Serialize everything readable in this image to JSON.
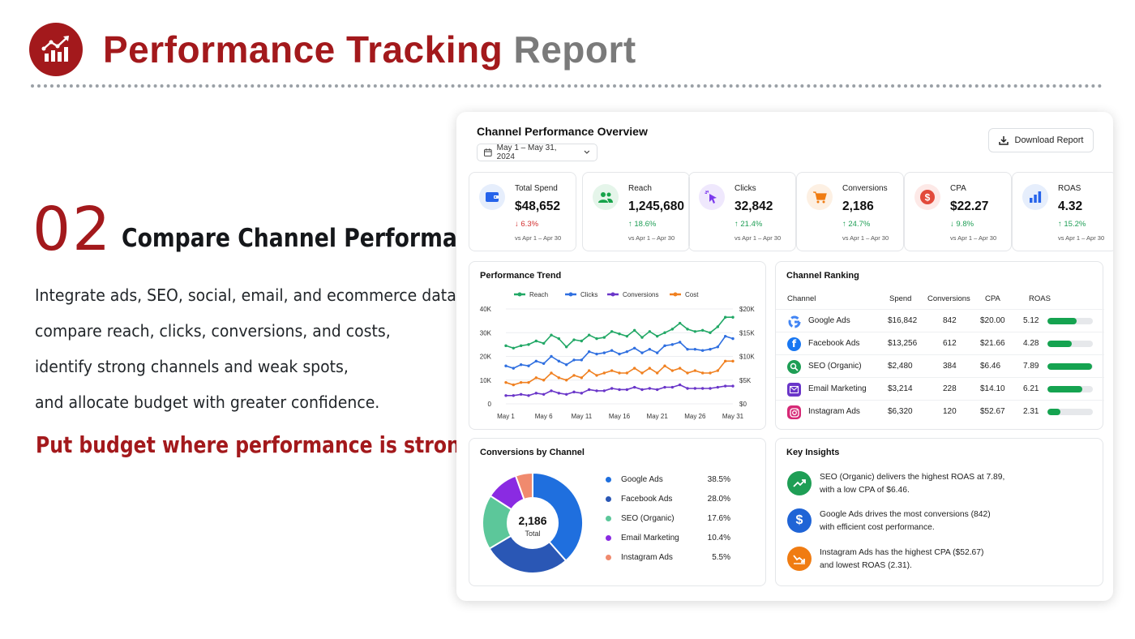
{
  "header": {
    "title_part1": "Performance Tracking",
    "title_part2": "Report",
    "logo_icon": "chart-growth-icon"
  },
  "section": {
    "number": "02",
    "title": "Compare Channel Performance",
    "description_lines": [
      "Integrate ads, SEO, social, email, and ecommerce data,",
      "compare reach, clicks, conversions, and costs,",
      "identify strong channels and weak spots,",
      "and allocate budget with greater confidence."
    ],
    "tagline": "Put budget where performance is strongest."
  },
  "dashboard": {
    "title": "Channel Performance Overview",
    "date_range": "May 1 – May 31, 2024",
    "download_label": "Download Report",
    "kpis": [
      {
        "label": "Total Spend",
        "value": "$48,652",
        "change": "6.3%",
        "direction": "down",
        "compare": "vs Apr 1 – Apr 30",
        "icon": "wallet-icon",
        "color": "#2563eb",
        "bg": "#e6eefc"
      },
      {
        "label": "Reach",
        "value": "1,245,680",
        "change": "18.6%",
        "direction": "up",
        "compare": "vs Apr 1 – Apr 30",
        "icon": "users-icon",
        "color": "#16a34a",
        "bg": "#e5f5ea"
      },
      {
        "label": "Clicks",
        "value": "32,842",
        "change": "21.4%",
        "direction": "up",
        "compare": "vs Apr 1 – Apr 30",
        "icon": "cursor-click-icon",
        "color": "#7c3aed",
        "bg": "#efe8fd"
      },
      {
        "label": "Conversions",
        "value": "2,186",
        "change": "24.7%",
        "direction": "up",
        "compare": "vs Apr 1 – Apr 30",
        "icon": "cart-icon",
        "color": "#f07c12",
        "bg": "#fdf0e3"
      },
      {
        "label": "CPA",
        "value": "$22.27",
        "change": "9.8%",
        "direction": "down_good",
        "compare": "vs Apr 1 – Apr 30",
        "icon": "dollar-coin-icon",
        "color": "#e24a3b",
        "bg": "#fde9e7"
      },
      {
        "label": "ROAS",
        "value": "4.32",
        "change": "15.2%",
        "direction": "up",
        "compare": "vs Apr 1 – Apr 30",
        "icon": "bar-chart-icon",
        "color": "#2563eb",
        "bg": "#e6eefc"
      }
    ],
    "trend": {
      "title": "Performance Trend",
      "legend": [
        "Reach",
        "Clicks",
        "Conversions",
        "Cost"
      ],
      "colors": [
        "#22a866",
        "#2f6fe0",
        "#6a36c9",
        "#f08020"
      ]
    },
    "ranking": {
      "title": "Channel Ranking",
      "headers": [
        "Channel",
        "Spend",
        "Conversions",
        "CPA",
        "ROAS"
      ],
      "rows": [
        {
          "channel": "Google Ads",
          "spend": "$16,842",
          "conversions": "842",
          "cpa": "$20.00",
          "roas": "5.12",
          "roas_value": 5.12,
          "icon": "google-icon"
        },
        {
          "channel": "Facebook Ads",
          "spend": "$13,256",
          "conversions": "612",
          "cpa": "$21.66",
          "roas": "4.28",
          "roas_value": 4.28,
          "icon": "facebook-icon"
        },
        {
          "channel": "SEO (Organic)",
          "spend": "$2,480",
          "conversions": "384",
          "cpa": "$6.46",
          "roas": "7.89",
          "roas_value": 7.89,
          "icon": "search-icon"
        },
        {
          "channel": "Email Marketing",
          "spend": "$3,214",
          "conversions": "228",
          "cpa": "$14.10",
          "roas": "6.21",
          "roas_value": 6.21,
          "icon": "email-icon"
        },
        {
          "channel": "Instagram Ads",
          "spend": "$6,320",
          "conversions": "120",
          "cpa": "$52.67",
          "roas": "2.31",
          "roas_value": 2.31,
          "icon": "instagram-icon"
        }
      ]
    },
    "conversions_by_channel": {
      "title": "Conversions by Channel",
      "total_value": "2,186",
      "total_label": "Total",
      "items": [
        {
          "name": "Google Ads",
          "pct_label": "38.5%",
          "pct": 38.5,
          "color": "#1f6fde"
        },
        {
          "name": "Facebook Ads",
          "pct_label": "28.0%",
          "pct": 28.0,
          "color": "#2a57b5"
        },
        {
          "name": "SEO (Organic)",
          "pct_label": "17.6%",
          "pct": 17.6,
          "color": "#5cc79a"
        },
        {
          "name": "Email Marketing",
          "pct_label": "10.4%",
          "pct": 10.4,
          "color": "#8a2be2"
        },
        {
          "name": "Instagram Ads",
          "pct_label": "5.5%",
          "pct": 5.5,
          "color": "#f08a6e"
        }
      ]
    },
    "insights": {
      "title": "Key Insights",
      "items": [
        {
          "line1": "SEO (Organic) delivers the highest ROAS at 7.89,",
          "line2": "with a low CPA of $6.46.",
          "icon": "trending-up-icon",
          "color": "#1e9e55"
        },
        {
          "line1": "Google Ads drives the most conversions (842)",
          "line2": "with efficient cost performance.",
          "icon": "dollar-icon",
          "color": "#1f64d6"
        },
        {
          "line1": "Instagram Ads has the highest CPA ($52.67)",
          "line2": "and lowest ROAS (2.31).",
          "icon": "trending-down-icon",
          "color": "#f07c12"
        }
      ]
    }
  },
  "chart_data": {
    "type": "line",
    "title": "Performance Trend",
    "x": [
      "May 1",
      "May 2",
      "May 3",
      "May 4",
      "May 5",
      "May 6",
      "May 7",
      "May 8",
      "May 9",
      "May 10",
      "May 11",
      "May 12",
      "May 13",
      "May 14",
      "May 15",
      "May 16",
      "May 17",
      "May 18",
      "May 19",
      "May 20",
      "May 21",
      "May 22",
      "May 23",
      "May 24",
      "May 25",
      "May 26",
      "May 27",
      "May 28",
      "May 29",
      "May 30",
      "May 31"
    ],
    "x_tick_labels": [
      "May 1",
      "May 6",
      "May 11",
      "May 16",
      "May 21",
      "May 26",
      "May 31"
    ],
    "y_left_ticks": [
      "0",
      "10K",
      "20K",
      "30K",
      "40K"
    ],
    "y_left_range": [
      0,
      40000
    ],
    "y_right_ticks": [
      "$0",
      "$5K",
      "$10K",
      "$15K",
      "$20K"
    ],
    "y_right_range": [
      0,
      20000
    ],
    "grid": true,
    "legend_position": "top",
    "series": [
      {
        "name": "Reach",
        "axis": "left",
        "color": "#22a866",
        "values": [
          24500,
          23500,
          24500,
          25000,
          26500,
          25500,
          29000,
          27500,
          24000,
          27000,
          26500,
          29000,
          27500,
          28000,
          30500,
          29500,
          28500,
          31000,
          28000,
          30500,
          28500,
          30000,
          31500,
          34000,
          31500,
          30500,
          31000,
          30000,
          32500,
          36500,
          36500
        ]
      },
      {
        "name": "Clicks",
        "axis": "left",
        "color": "#2f6fe0",
        "values": [
          16000,
          15000,
          16500,
          16000,
          18000,
          17000,
          20000,
          18000,
          16500,
          18500,
          18500,
          22000,
          21000,
          21500,
          22500,
          21000,
          22000,
          23500,
          21500,
          23000,
          21500,
          24500,
          25000,
          26000,
          23000,
          23000,
          22500,
          23000,
          24000,
          28500,
          27500
        ]
      },
      {
        "name": "Conversions",
        "axis": "left",
        "color": "#6a36c9",
        "values": [
          3500,
          3500,
          4000,
          3500,
          4500,
          4000,
          5500,
          4500,
          4000,
          5000,
          4500,
          6000,
          5500,
          5500,
          6500,
          6000,
          6000,
          7000,
          6000,
          6500,
          6000,
          7000,
          7000,
          8000,
          6500,
          6500,
          6500,
          6500,
          7000,
          7500,
          7500
        ]
      },
      {
        "name": "Cost",
        "axis": "right",
        "color": "#f08020",
        "values": [
          4500,
          4000,
          4500,
          4500,
          5500,
          5000,
          6500,
          5500,
          5000,
          6000,
          5500,
          7000,
          6000,
          6500,
          7000,
          6500,
          6500,
          7500,
          6500,
          7500,
          6500,
          8000,
          7000,
          7500,
          6500,
          7000,
          6500,
          6500,
          7000,
          9000,
          9000
        ]
      }
    ]
  }
}
